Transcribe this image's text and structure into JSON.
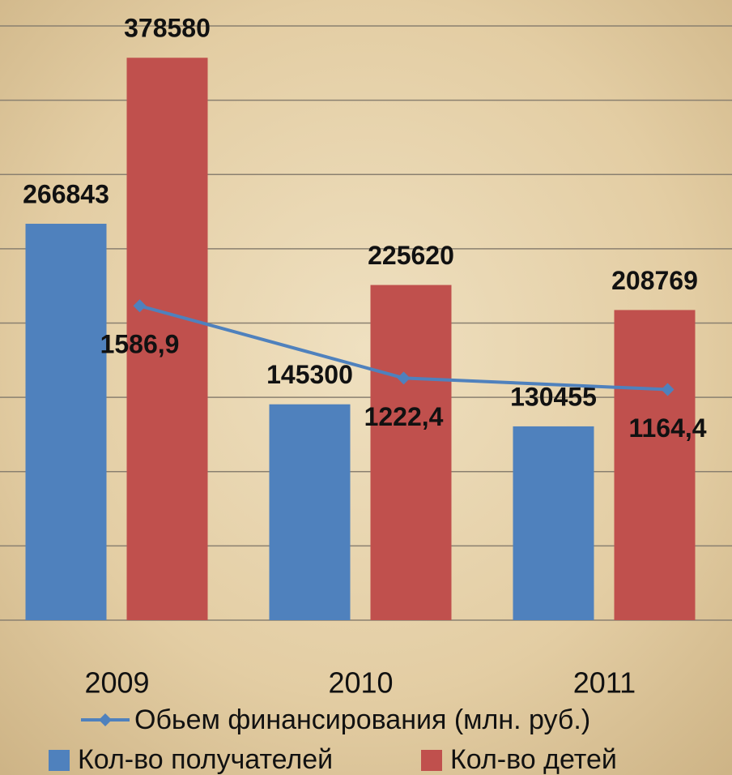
{
  "chart_data": {
    "type": "bar",
    "categories": [
      "2009",
      "2010",
      "2011"
    ],
    "series": [
      {
        "name": "Кол-во получателей",
        "color": "#4f81bd",
        "values": [
          266843,
          145300,
          130455
        ]
      },
      {
        "name": "Кол-во детей",
        "color": "#c0504d",
        "values": [
          378580,
          225620,
          208769
        ]
      },
      {
        "name": "Обьем финансирования (млн. руб.)",
        "color": "#4f81bd",
        "type": "line",
        "axis": "y2",
        "values": [
          1586.9,
          1222.4,
          1164.4
        ],
        "value_labels": [
          "1586,9",
          "1222,4",
          "1164,4"
        ]
      }
    ],
    "ylim": [
      0,
      400000
    ],
    "yticks": [
      0,
      50000,
      100000,
      150000,
      200000,
      250000,
      300000,
      350000,
      400000
    ],
    "y2lim": [
      0,
      3000
    ],
    "grid": true
  }
}
